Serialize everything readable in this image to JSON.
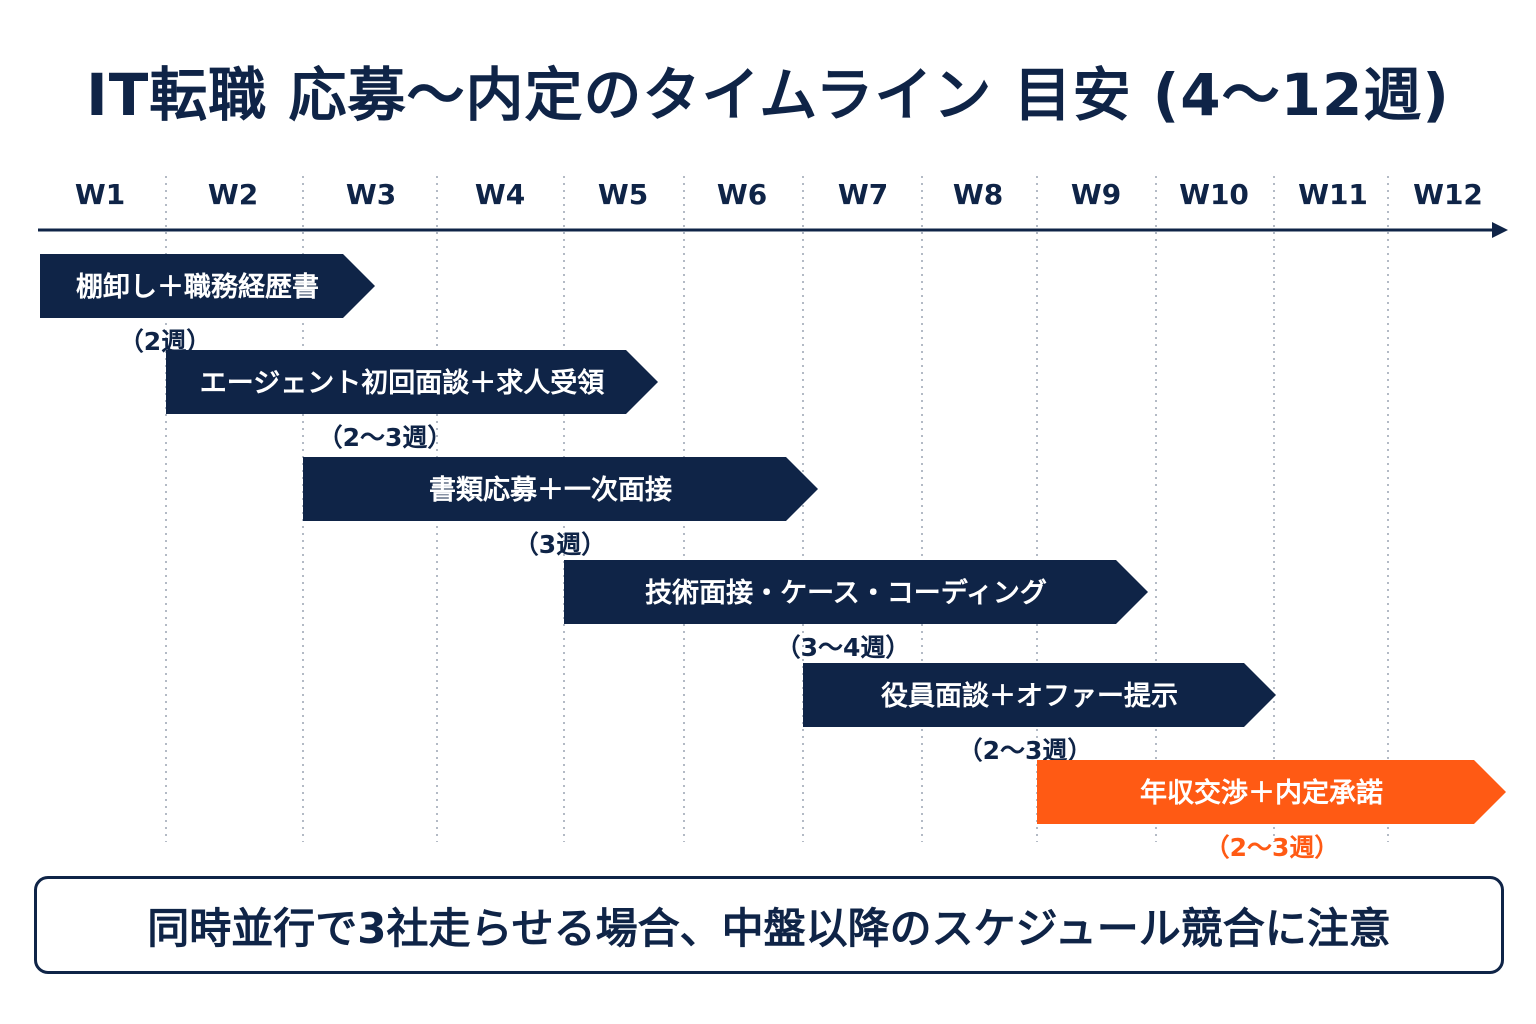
{
  "title": "IT転職 応募〜内定のタイムライン 目安 (4〜12週)",
  "colors": {
    "navy": "#0f2447",
    "accent": "#ff5a14",
    "grid": "#9aa3b2"
  },
  "weeks": [
    "W1",
    "W2",
    "W3",
    "W4",
    "W5",
    "W6",
    "W7",
    "W8",
    "W9",
    "W10",
    "W11",
    "W12"
  ],
  "phases": [
    {
      "label": "棚卸し＋職務経歴書",
      "duration": "（2週）",
      "start_week": 1,
      "end_week": 3,
      "highlight": false
    },
    {
      "label": "エージェント初回面談＋求人受領",
      "duration": "（2〜3週）",
      "start_week": 2,
      "end_week": 5,
      "highlight": false
    },
    {
      "label": "書類応募＋一次面接",
      "duration": "（3週）",
      "start_week": 3,
      "end_week": 6,
      "highlight": false
    },
    {
      "label": "技術面接・ケース・コーディング",
      "duration": "（3〜4週）",
      "start_week": 5,
      "end_week": 9,
      "highlight": false
    },
    {
      "label": "役員面談＋オファー提示",
      "duration": "（2〜3週）",
      "start_week": 7,
      "end_week": 10,
      "highlight": false
    },
    {
      "label": "年収交渉＋内定承諾",
      "duration": "（2〜3週）",
      "start_week": 9,
      "end_week": 12,
      "highlight": true
    }
  ],
  "note": "同時並行で3社走らせる場合、中盤以降のスケジュール競合に注意"
}
